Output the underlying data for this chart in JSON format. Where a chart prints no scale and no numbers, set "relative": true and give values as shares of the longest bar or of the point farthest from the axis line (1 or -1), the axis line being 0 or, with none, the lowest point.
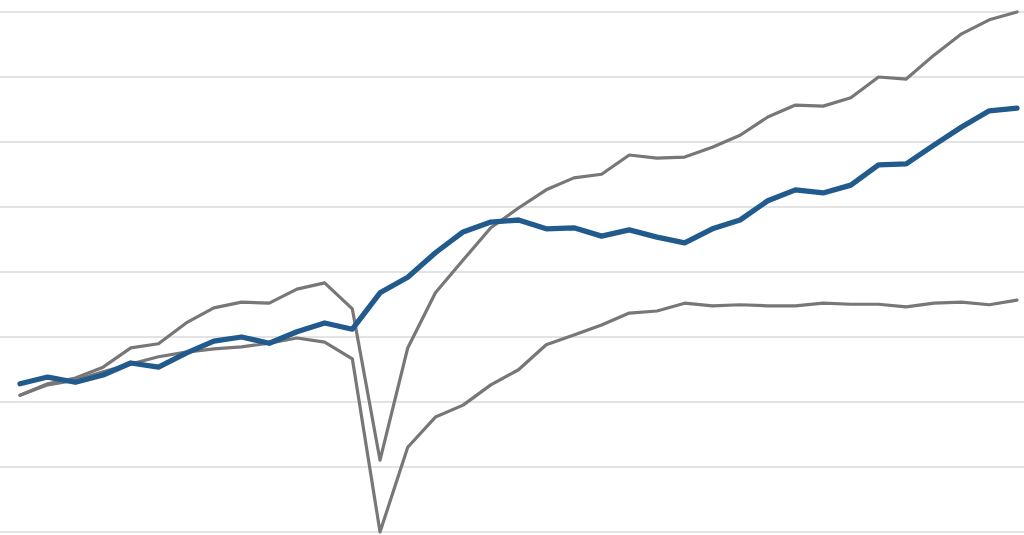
{
  "chart_data": {
    "type": "line",
    "relative": true,
    "grid": "y",
    "categories": [
      null,
      null,
      null,
      null,
      null,
      null,
      null,
      null,
      null,
      null,
      null,
      null,
      null,
      null,
      null,
      null,
      null,
      null,
      null,
      null,
      null,
      null,
      null,
      null,
      null,
      null,
      null,
      null,
      null,
      null,
      null,
      null,
      null,
      null,
      null,
      null,
      null
    ],
    "series": [
      {
        "color": "#777777",
        "values": [
          0.263,
          0.285,
          0.296,
          0.317,
          0.354,
          0.362,
          0.402,
          0.431,
          0.442,
          0.44,
          0.467,
          0.479,
          0.429,
          0.138,
          0.354,
          0.46,
          0.523,
          0.585,
          0.623,
          0.658,
          0.681,
          0.688,
          0.725,
          0.719,
          0.721,
          0.74,
          0.763,
          0.798,
          0.821,
          0.819,
          0.835,
          0.875,
          0.871,
          0.917,
          0.958,
          0.985,
          1.0
        ]
      },
      {
        "color": "#777777",
        "values": [
          0.263,
          0.283,
          0.292,
          0.308,
          0.323,
          0.337,
          0.346,
          0.352,
          0.356,
          0.363,
          0.373,
          0.365,
          0.333,
          0.0,
          0.163,
          0.221,
          0.244,
          0.283,
          0.312,
          0.36,
          0.379,
          0.398,
          0.421,
          0.425,
          0.44,
          0.435,
          0.437,
          0.435,
          0.435,
          0.44,
          0.438,
          0.438,
          0.433,
          0.44,
          0.442,
          0.437,
          0.446
        ]
      },
      {
        "color": "#215a8c",
        "values": [
          0.285,
          0.298,
          0.288,
          0.302,
          0.325,
          0.317,
          0.344,
          0.367,
          0.375,
          0.363,
          0.385,
          0.402,
          0.39,
          0.46,
          0.49,
          0.537,
          0.577,
          0.596,
          0.6,
          0.583,
          0.585,
          0.569,
          0.581,
          0.567,
          0.556,
          0.583,
          0.6,
          0.637,
          0.658,
          0.652,
          0.667,
          0.706,
          0.708,
          0.744,
          0.779,
          0.81,
          0.815
        ]
      }
    ]
  }
}
